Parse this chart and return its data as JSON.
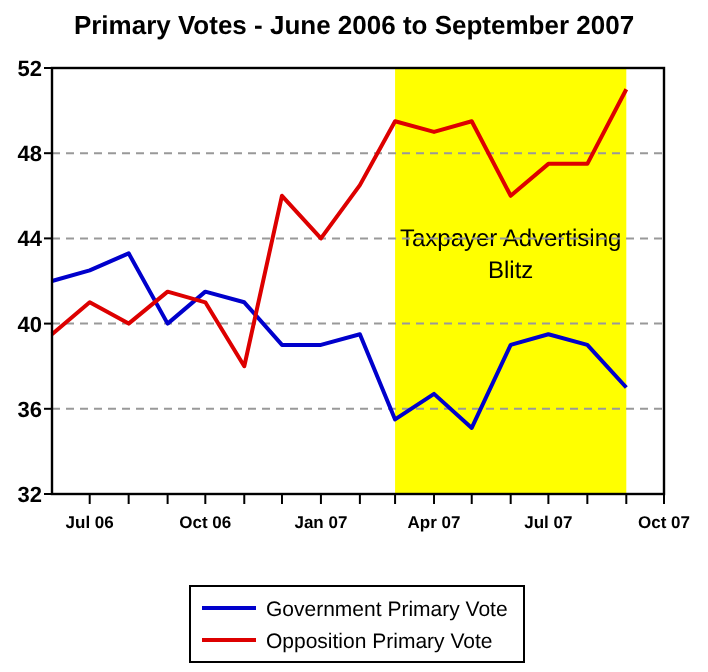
{
  "chart_data": {
    "type": "line",
    "title": "Primary Votes - June 2006 to September 2007",
    "x": [
      "2006-06",
      "2006-07",
      "2006-08",
      "2006-09",
      "2006-10",
      "2006-11",
      "2006-12",
      "2007-01",
      "2007-02",
      "2007-03",
      "2007-04",
      "2007-05",
      "2007-06",
      "2007-07",
      "2007-08",
      "2007-09"
    ],
    "series": [
      {
        "name": "Government Primary Vote",
        "color": "#0000cc",
        "values": [
          42,
          42.5,
          43.3,
          40,
          41.5,
          41,
          39,
          39,
          39.5,
          35.5,
          36.7,
          35.1,
          39,
          39.5,
          39,
          37
        ]
      },
      {
        "name": "Opposition Primary Vote",
        "color": "#dd0000",
        "values": [
          39.5,
          41,
          40,
          41.5,
          41,
          38,
          46,
          44,
          46.5,
          49.5,
          49,
          49.5,
          46,
          47.5,
          47.5,
          51
        ]
      }
    ],
    "xlim": [
      "2006-06",
      "2007-10"
    ],
    "xticks": [
      {
        "value": "2006-07",
        "label": "Jul 06"
      },
      {
        "value": "2006-08",
        "label": null
      },
      {
        "value": "2006-09",
        "label": null
      },
      {
        "value": "2006-10",
        "label": "Oct 06"
      },
      {
        "value": "2006-11",
        "label": null
      },
      {
        "value": "2006-12",
        "label": null
      },
      {
        "value": "2007-01",
        "label": "Jan 07"
      },
      {
        "value": "2007-02",
        "label": null
      },
      {
        "value": "2007-03",
        "label": null
      },
      {
        "value": "2007-04",
        "label": "Apr 07"
      },
      {
        "value": "2007-05",
        "label": null
      },
      {
        "value": "2007-06",
        "label": null
      },
      {
        "value": "2007-07",
        "label": "Jul 07"
      },
      {
        "value": "2007-08",
        "label": null
      },
      {
        "value": "2007-09",
        "label": null
      },
      {
        "value": "2007-10",
        "label": "Oct 07"
      }
    ],
    "ylim": [
      32,
      52
    ],
    "yticks": [
      32,
      36,
      40,
      44,
      48,
      52
    ],
    "grid": "y",
    "legend": "bottom",
    "marker": "none",
    "line_style": "solid",
    "bands": [
      {
        "axis": "x",
        "from": "2007-03",
        "to": "2007-09",
        "label": "Taxpayer Advertising Blitz",
        "color": "#ffff00"
      }
    ]
  }
}
